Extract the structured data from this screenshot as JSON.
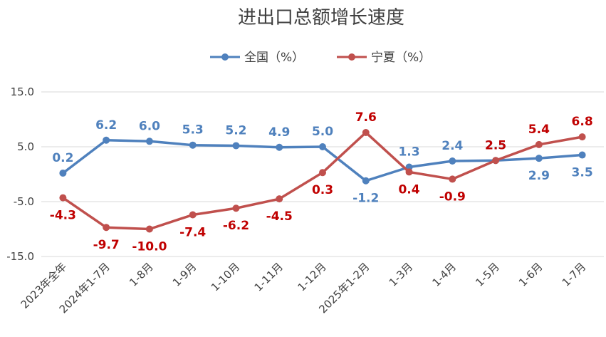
{
  "chart_data": {
    "type": "line",
    "title": "进出口总额增长速度",
    "categories": [
      "2023年全年",
      "2024年1-7月",
      "1-8月",
      "1-9月",
      "1-10月",
      "1-11月",
      "1-12月",
      "2025年1-2月",
      "1-3月",
      "1-4月",
      "1-5月",
      "1-6月",
      "1-7月"
    ],
    "series": [
      {
        "name": "全国（%）",
        "color": "#4F81BD",
        "values": [
          0.2,
          6.2,
          6.0,
          5.3,
          5.2,
          4.9,
          5.0,
          -1.2,
          1.3,
          2.4,
          2.5,
          2.9,
          3.5
        ]
      },
      {
        "name": "宁夏（%）",
        "color": "#C0504D",
        "label_color": "#C00000",
        "values": [
          -4.3,
          -9.7,
          -10.0,
          -7.4,
          -6.2,
          -4.5,
          0.3,
          7.6,
          0.4,
          -0.9,
          2.5,
          5.4,
          6.8
        ]
      }
    ],
    "data_labels": [
      [
        "0.2",
        "6.2",
        "6.0",
        "5.3",
        "5.2",
        "4.9",
        "5.0",
        "-1.2",
        "1.3",
        "2.4",
        "2.5",
        "2.9",
        "3.5"
      ],
      [
        "-4.3",
        "-9.7",
        "-10.0",
        "-7.4",
        "-6.2",
        "-4.5",
        "0.3",
        "7.6",
        "0.4",
        "-0.9",
        "2.5",
        "5.4",
        "6.8"
      ]
    ],
    "yticks": [
      "15.0",
      "5.0",
      "-5.0",
      "-15.0"
    ],
    "ytick_values": [
      15,
      5,
      -5,
      -15
    ],
    "ylim": [
      -15,
      15
    ],
    "legend_position": "top",
    "grid": true
  }
}
